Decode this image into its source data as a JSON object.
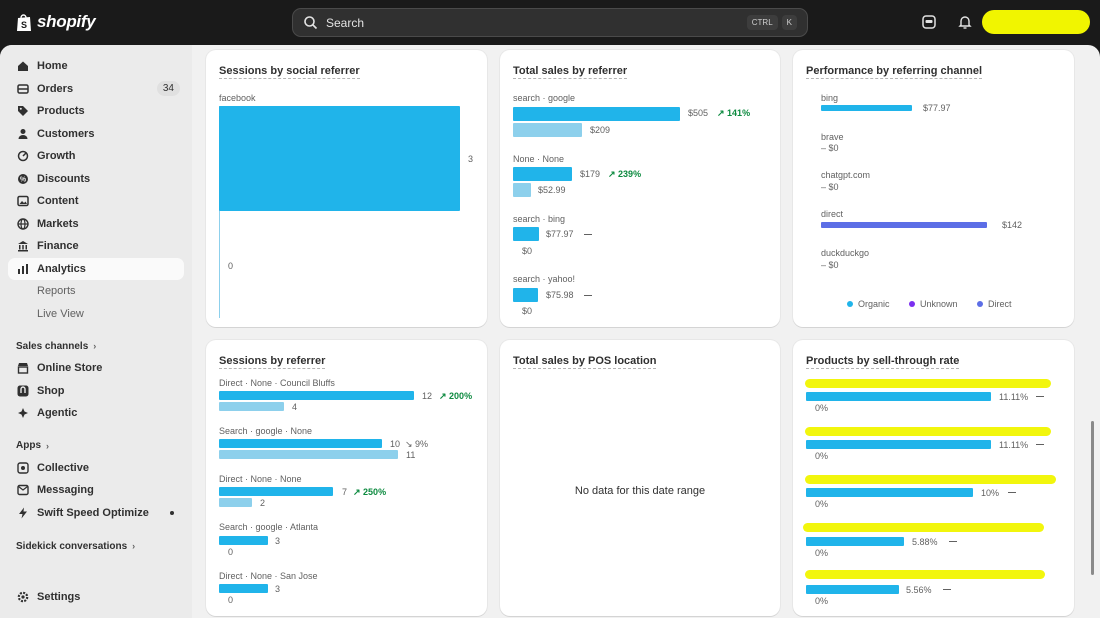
{
  "topbar": {
    "brand": "shopify",
    "search_placeholder": "Search",
    "shortcut_keys": [
      "CTRL",
      "K"
    ]
  },
  "sidebar": {
    "items": [
      {
        "label": "Home",
        "icon": "home-icon"
      },
      {
        "label": "Orders",
        "icon": "orders-icon",
        "badge": "34"
      },
      {
        "label": "Products",
        "icon": "tag-icon"
      },
      {
        "label": "Customers",
        "icon": "person-icon"
      },
      {
        "label": "Growth",
        "icon": "growth-icon"
      },
      {
        "label": "Discounts",
        "icon": "discount-icon"
      },
      {
        "label": "Content",
        "icon": "content-icon"
      },
      {
        "label": "Markets",
        "icon": "globe-icon"
      },
      {
        "label": "Finance",
        "icon": "bank-icon"
      },
      {
        "label": "Analytics",
        "icon": "chart-icon",
        "active": true
      }
    ],
    "sub_items": [
      "Reports",
      "Live View"
    ],
    "sales_channels_heading": "Sales channels",
    "channels": [
      {
        "label": "Online Store",
        "icon": "store-icon"
      },
      {
        "label": "Shop",
        "icon": "shop-icon"
      },
      {
        "label": "Agentic",
        "icon": "agentic-icon"
      }
    ],
    "apps_heading": "Apps",
    "apps": [
      {
        "label": "Collective",
        "icon": "collective-icon"
      },
      {
        "label": "Messaging",
        "icon": "messaging-icon"
      },
      {
        "label": "Swift Speed Optimize",
        "icon": "swift-icon"
      }
    ],
    "sidekick_heading": "Sidekick conversations",
    "settings_label": "Settings"
  },
  "cards": {
    "social": {
      "title": "Sessions by social referrer",
      "category": "facebook",
      "value": "3",
      "axis_zero": "0"
    },
    "sales_referrer": {
      "title": "Total sales by referrer",
      "rows": [
        {
          "label": "search · google",
          "current": "$505",
          "current_value": 505,
          "change": "141%",
          "previous": "$209",
          "previous_value": 209
        },
        {
          "label": "None · None",
          "current": "$179",
          "current_value": 179,
          "change": "239%",
          "previous": "$52.99",
          "previous_value": 52.99
        },
        {
          "label": "search · bing",
          "current": "$77.97",
          "current_value": 77.97,
          "change": "",
          "previous": "$0",
          "previous_value": 0
        },
        {
          "label": "search · yahoo!",
          "current": "$75.98",
          "current_value": 75.98,
          "change": "",
          "previous": "$0",
          "previous_value": 0
        }
      ]
    },
    "channel": {
      "title": "Performance by referring channel",
      "rows": [
        {
          "label": "bing",
          "value": "$77.97",
          "amount": 77.97,
          "color": "#20b4ea"
        },
        {
          "label": "brave",
          "value": "– $0",
          "amount": 0,
          "color": "#20b4ea"
        },
        {
          "label": "chatgpt.com",
          "value": "– $0",
          "amount": 0,
          "color": "#20b4ea"
        },
        {
          "label": "direct",
          "value": "$142",
          "amount": 142,
          "color": "#5c6ee6"
        },
        {
          "label": "duckduckgo",
          "value": "– $0",
          "amount": 0,
          "color": "#20b4ea"
        }
      ],
      "legend": [
        {
          "label": "Organic",
          "color": "#20b4ea"
        },
        {
          "label": "Unknown",
          "color": "#7b2ff0"
        },
        {
          "label": "Direct",
          "color": "#5c6ee6"
        }
      ]
    },
    "sessions_referrer": {
      "title": "Sessions by referrer",
      "rows": [
        {
          "label": "Direct · None · Council Bluffs",
          "current": "12",
          "current_value": 12,
          "change": "200%",
          "change_dir": "up",
          "previous": "4",
          "previous_value": 4
        },
        {
          "label": "Search · google · None",
          "current": "10",
          "current_value": 10,
          "change": "9%",
          "change_dir": "down",
          "previous": "11",
          "previous_value": 11
        },
        {
          "label": "Direct · None · None",
          "current": "7",
          "current_value": 7,
          "change": "250%",
          "change_dir": "up",
          "previous": "2",
          "previous_value": 2
        },
        {
          "label": "Search · google · Atlanta",
          "current": "3",
          "current_value": 3,
          "change": "",
          "change_dir": "none",
          "previous": "0",
          "previous_value": 0
        },
        {
          "label": "Direct · None · San Jose",
          "current": "3",
          "current_value": 3,
          "change": "",
          "change_dir": "none",
          "previous": "0",
          "previous_value": 0
        }
      ]
    },
    "pos": {
      "title": "Total sales by POS location",
      "empty_text": "No data for this date range"
    },
    "sell_through": {
      "title": "Products by sell-through rate",
      "rows": [
        {
          "current": "11.11%",
          "rate": 11.11,
          "previous": "0%"
        },
        {
          "current": "11.11%",
          "rate": 11.11,
          "previous": "0%"
        },
        {
          "current": "10%",
          "rate": 10,
          "previous": "0%"
        },
        {
          "current": "5.88%",
          "rate": 5.88,
          "previous": "0%"
        },
        {
          "current": "5.56%",
          "rate": 5.56,
          "previous": "0%"
        }
      ]
    }
  }
}
